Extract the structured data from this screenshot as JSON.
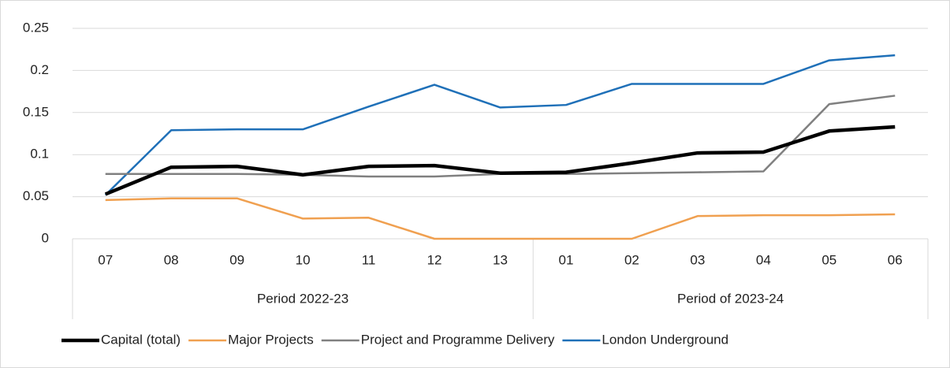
{
  "chart_data": {
    "type": "line",
    "categories": [
      "07",
      "08",
      "09",
      "10",
      "11",
      "12",
      "13",
      "01",
      "02",
      "03",
      "04",
      "05",
      "06"
    ],
    "category_groups": [
      {
        "label": "Period 2022-23",
        "count": 7
      },
      {
        "label": "Period of 2023-24",
        "count": 6
      }
    ],
    "series": [
      {
        "name": "Capital (total)",
        "color": "#000000",
        "values": [
          0.053,
          0.085,
          0.086,
          0.076,
          0.086,
          0.087,
          0.078,
          0.079,
          0.09,
          0.102,
          0.103,
          0.128,
          0.133
        ]
      },
      {
        "name": "Major Projects",
        "color": "#f0a050",
        "values": [
          0.046,
          0.048,
          0.048,
          0.024,
          0.025,
          0,
          0,
          0,
          0,
          0.027,
          0.028,
          0.028,
          0.029
        ]
      },
      {
        "name": "Project and Programme Delivery",
        "color": "#808080",
        "values": [
          0.077,
          0.077,
          0.077,
          0.076,
          0.074,
          0.074,
          0.077,
          0.077,
          0.078,
          0.079,
          0.08,
          0.16,
          0.17
        ]
      },
      {
        "name": "London Underground",
        "color": "#1f70b8",
        "values": [
          0.052,
          0.129,
          0.13,
          0.13,
          0.157,
          0.183,
          0.156,
          0.159,
          0.184,
          0.184,
          0.184,
          0.212,
          0.218
        ]
      }
    ],
    "ylim": [
      0,
      0.25
    ],
    "yticks": [
      0,
      0.05,
      0.1,
      0.15,
      0.2,
      0.25
    ],
    "grid": true,
    "legend": "bottom"
  }
}
